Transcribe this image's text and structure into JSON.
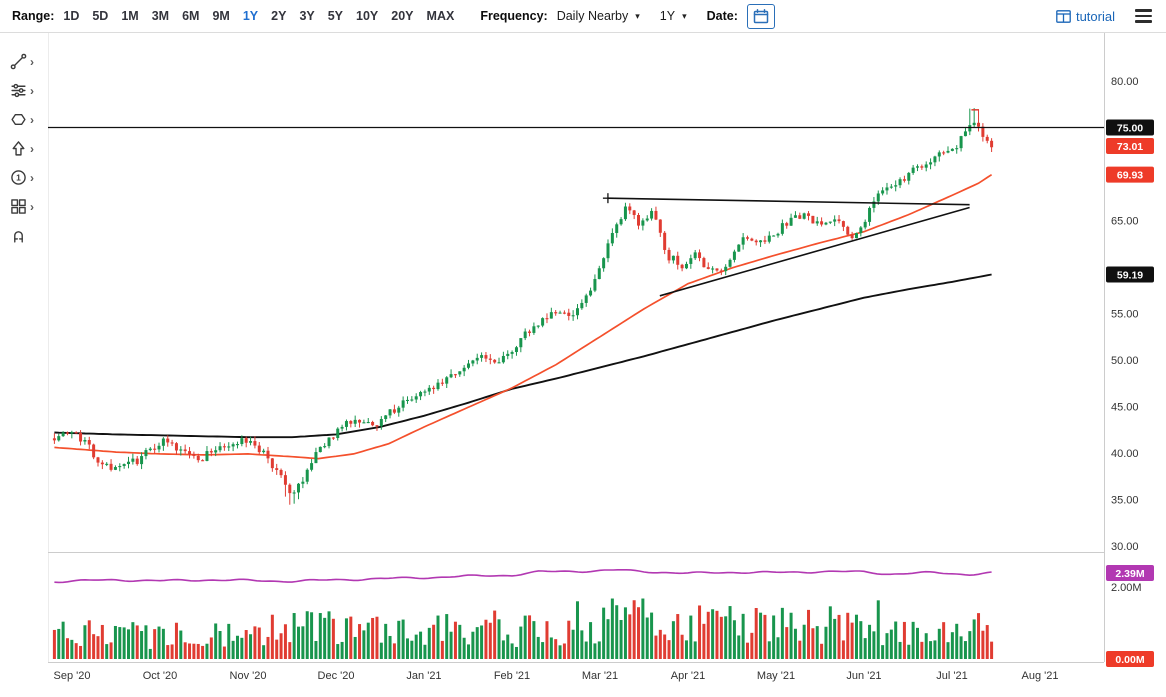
{
  "toolbar": {
    "range_label": "Range:",
    "ranges": [
      "1D",
      "5D",
      "1M",
      "3M",
      "6M",
      "9M",
      "1Y",
      "2Y",
      "3Y",
      "5Y",
      "10Y",
      "20Y",
      "MAX"
    ],
    "active_range": "1Y",
    "frequency_label": "Frequency:",
    "frequency_value": "Daily Nearby",
    "period_value": "1Y",
    "date_label": "Date:",
    "tutorial_label": "tutorial"
  },
  "sidebar": {
    "tools": [
      {
        "id": "drawing-tools",
        "icon": "trendline-icon",
        "has_submenu": true
      },
      {
        "id": "studies",
        "icon": "studies-icon",
        "has_submenu": true
      },
      {
        "id": "shapes",
        "icon": "shapes-icon",
        "has_submenu": true
      },
      {
        "id": "arrows",
        "icon": "arrow-icon",
        "has_submenu": true
      },
      {
        "id": "annotations",
        "icon": "number-one-icon",
        "has_submenu": true
      },
      {
        "id": "patterns",
        "icon": "layout-grid-icon",
        "has_submenu": true
      },
      {
        "id": "magnet",
        "icon": "magnet-icon",
        "has_submenu": false
      }
    ]
  },
  "colors": {
    "up": "#18954d",
    "down": "#e03c32",
    "ma_fast": "#f4502c",
    "ma_slow": "#111111",
    "oi_line": "#b238b2",
    "badge_black": "#101010",
    "badge_red": "#ee3b28",
    "badge_purple": "#b238b2",
    "accent_blue": "#1a66b8",
    "axis_text": "#333333",
    "grid_border": "#cccccc"
  },
  "chart_data": {
    "type": "candlestick",
    "x_axis": {
      "labels": [
        "Sep '20",
        "Oct '20",
        "Nov '20",
        "Dec '20",
        "Jan '21",
        "Feb '21",
        "Mar '21",
        "Apr '21",
        "May '21",
        "Jun '21",
        "Jul '21",
        "Aug '21"
      ]
    },
    "y_axis": {
      "range": [
        30,
        80
      ],
      "labels": [
        {
          "text": "80.00",
          "price": 80
        },
        {
          "text": "65.00",
          "price": 65
        },
        {
          "text": "55.00",
          "price": 55
        },
        {
          "text": "50.00",
          "price": 50
        },
        {
          "text": "45.00",
          "price": 45
        },
        {
          "text": "40.00",
          "price": 40
        },
        {
          "text": "35.00",
          "price": 35
        },
        {
          "text": "30.00",
          "price": 30
        }
      ]
    },
    "badges": [
      {
        "text": "75.00",
        "panel": "price",
        "value": 75.0,
        "color": "badge_black"
      },
      {
        "text": "73.01",
        "panel": "price",
        "value": 73.01,
        "color": "badge_red"
      },
      {
        "text": "69.93",
        "panel": "price",
        "value": 69.93,
        "color": "badge_red"
      },
      {
        "text": "59.19",
        "panel": "price",
        "value": 59.19,
        "color": "badge_black"
      },
      {
        "text": "2.39M",
        "panel": "volume",
        "value": 2.39,
        "color": "badge_purple"
      },
      {
        "text": "0.00M",
        "panel": "volume",
        "value": 0.0,
        "color": "badge_red"
      }
    ],
    "last_price": 73.01,
    "ma_fast_last": 69.93,
    "ma_slow_last": 59.19,
    "horizontal_line_price": 75.0,
    "price_anchors": [
      [
        -0.2,
        41.8
      ],
      [
        0.0,
        42.2
      ],
      [
        0.15,
        41.0
      ],
      [
        0.35,
        38.8
      ],
      [
        0.55,
        38.2
      ],
      [
        0.75,
        39.3
      ],
      [
        1.0,
        41.3
      ],
      [
        1.2,
        40.3
      ],
      [
        1.45,
        39.4
      ],
      [
        1.7,
        40.8
      ],
      [
        1.95,
        41.2
      ],
      [
        2.15,
        40.3
      ],
      [
        2.35,
        37.6
      ],
      [
        2.5,
        35.2
      ],
      [
        2.65,
        37.4
      ],
      [
        2.8,
        40.2
      ],
      [
        3.0,
        42.3
      ],
      [
        3.2,
        43.8
      ],
      [
        3.45,
        43.2
      ],
      [
        3.7,
        45.0
      ],
      [
        3.95,
        46.3
      ],
      [
        4.2,
        47.8
      ],
      [
        4.45,
        49.3
      ],
      [
        4.65,
        50.3
      ],
      [
        4.8,
        49.6
      ],
      [
        5.0,
        51.2
      ],
      [
        5.25,
        53.6
      ],
      [
        5.5,
        55.3
      ],
      [
        5.7,
        54.6
      ],
      [
        5.9,
        57.5
      ],
      [
        6.1,
        62.5
      ],
      [
        6.3,
        66.3
      ],
      [
        6.45,
        64.6
      ],
      [
        6.6,
        66.2
      ],
      [
        6.75,
        61.2
      ],
      [
        6.95,
        60.2
      ],
      [
        7.1,
        61.6
      ],
      [
        7.25,
        59.3
      ],
      [
        7.45,
        60.2
      ],
      [
        7.65,
        63.2
      ],
      [
        7.85,
        62.3
      ],
      [
        8.05,
        64.2
      ],
      [
        8.3,
        65.6
      ],
      [
        8.5,
        64.3
      ],
      [
        8.7,
        65.2
      ],
      [
        8.85,
        63.4
      ],
      [
        9.0,
        64.8
      ],
      [
        9.15,
        67.6
      ],
      [
        9.35,
        68.8
      ],
      [
        9.55,
        70.2
      ],
      [
        9.75,
        71.6
      ],
      [
        9.95,
        72.4
      ],
      [
        10.1,
        73.6
      ],
      [
        10.2,
        74.8
      ],
      [
        10.28,
        75.3
      ],
      [
        10.35,
        74.2
      ],
      [
        10.45,
        73.01
      ]
    ],
    "ma_fast_anchors": [
      [
        -0.2,
        40.6
      ],
      [
        0.5,
        40.1
      ],
      [
        1.0,
        39.9
      ],
      [
        1.5,
        39.8
      ],
      [
        2.0,
        39.9
      ],
      [
        2.5,
        39.6
      ],
      [
        2.8,
        39.4
      ],
      [
        3.2,
        39.9
      ],
      [
        3.6,
        41.0
      ],
      [
        4.0,
        42.8
      ],
      [
        4.5,
        44.9
      ],
      [
        5.0,
        47.0
      ],
      [
        5.5,
        49.5
      ],
      [
        6.0,
        52.5
      ],
      [
        6.5,
        55.5
      ],
      [
        7.0,
        58.2
      ],
      [
        7.5,
        59.9
      ],
      [
        8.0,
        61.3
      ],
      [
        8.5,
        62.6
      ],
      [
        9.0,
        63.8
      ],
      [
        9.5,
        65.6
      ],
      [
        10.0,
        67.7
      ],
      [
        10.3,
        69.0
      ],
      [
        10.45,
        69.93
      ]
    ],
    "ma_slow_anchors": [
      [
        -0.2,
        42.2
      ],
      [
        0.5,
        42.0
      ],
      [
        1.0,
        41.9
      ],
      [
        1.5,
        41.8
      ],
      [
        2.0,
        41.7
      ],
      [
        2.5,
        41.7
      ],
      [
        3.0,
        42.0
      ],
      [
        3.5,
        42.8
      ],
      [
        4.0,
        44.0
      ],
      [
        4.5,
        45.4
      ],
      [
        5.0,
        46.9
      ],
      [
        5.5,
        48.0
      ],
      [
        6.0,
        49.2
      ],
      [
        6.5,
        50.4
      ],
      [
        7.0,
        51.7
      ],
      [
        7.5,
        53.0
      ],
      [
        8.0,
        54.3
      ],
      [
        8.5,
        55.5
      ],
      [
        9.0,
        56.7
      ],
      [
        9.5,
        57.6
      ],
      [
        10.0,
        58.4
      ],
      [
        10.45,
        59.19
      ]
    ],
    "trendlines": [
      {
        "t1": 6.09,
        "p1": 67.4,
        "t2": 10.2,
        "p2": 66.7
      },
      {
        "t1": 6.68,
        "p1": 56.9,
        "t2": 10.2,
        "p2": 66.4
      }
    ],
    "plus_marker": {
      "t": 6.09,
      "p": 67.4
    },
    "high_tick": {
      "t": 10.26,
      "p": 76.9
    },
    "volume_axis": {
      "label": {
        "text": "2.00M",
        "value": 2.0
      }
    },
    "oi_anchors": [
      [
        -0.2,
        2.15
      ],
      [
        0.5,
        2.2
      ],
      [
        1.0,
        2.17
      ],
      [
        1.5,
        2.2
      ],
      [
        2.0,
        2.18
      ],
      [
        2.5,
        2.16
      ],
      [
        3.0,
        2.2
      ],
      [
        3.5,
        2.23
      ],
      [
        4.0,
        2.26
      ],
      [
        4.5,
        2.3
      ],
      [
        5.0,
        2.33
      ],
      [
        5.3,
        2.42
      ],
      [
        5.8,
        2.44
      ],
      [
        6.2,
        2.47
      ],
      [
        6.5,
        2.43
      ],
      [
        7.0,
        2.38
      ],
      [
        7.5,
        2.41
      ],
      [
        8.0,
        2.4
      ],
      [
        8.5,
        2.43
      ],
      [
        9.0,
        2.42
      ],
      [
        9.3,
        2.36
      ],
      [
        9.8,
        2.4
      ],
      [
        10.2,
        2.35
      ],
      [
        10.45,
        2.39
      ]
    ],
    "volume_profile": [
      [
        -0.2,
        0.85
      ],
      [
        0.6,
        0.8
      ],
      [
        1.2,
        0.75
      ],
      [
        2.0,
        0.8
      ],
      [
        2.6,
        0.95
      ],
      [
        3.2,
        0.85
      ],
      [
        4.0,
        0.8
      ],
      [
        4.8,
        0.9
      ],
      [
        5.5,
        1.05
      ],
      [
        6.0,
        1.2
      ],
      [
        6.5,
        1.15
      ],
      [
        7.0,
        1.1
      ],
      [
        7.6,
        1.0
      ],
      [
        8.2,
        0.95
      ],
      [
        8.8,
        1.0
      ],
      [
        9.2,
        1.1
      ],
      [
        9.8,
        0.95
      ],
      [
        10.45,
        0.9
      ]
    ]
  }
}
